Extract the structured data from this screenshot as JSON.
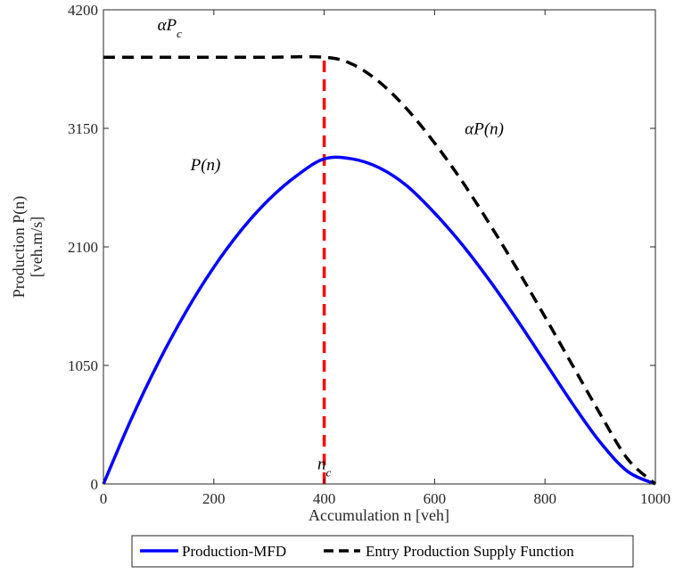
{
  "chart_data": {
    "type": "line",
    "title": "",
    "xlabel": "Accumulation n [veh]",
    "ylabel_line1": "Production P(n)",
    "ylabel_line2": "[veh.m/s]",
    "xlim": [
      0,
      1000
    ],
    "ylim": [
      0,
      4200
    ],
    "xticks": [
      0,
      200,
      400,
      600,
      800,
      1000
    ],
    "yticks": [
      0,
      1050,
      2100,
      3150,
      4200
    ],
    "grid": false,
    "legend_position": "bottom-outside",
    "series": [
      {
        "name": "Production-MFD",
        "color": "#0000ff",
        "style": "solid",
        "x": [
          0,
          50,
          100,
          150,
          200,
          250,
          300,
          350,
          400,
          450,
          500,
          550,
          600,
          650,
          700,
          750,
          800,
          850,
          900,
          950,
          1000
        ],
        "y": [
          0,
          570,
          1080,
          1530,
          1920,
          2250,
          2520,
          2730,
          2880,
          2880,
          2800,
          2640,
          2400,
          2120,
          1800,
          1450,
          1080,
          710,
          370,
          110,
          0
        ]
      },
      {
        "name": "Entry Production Supply Function",
        "color": "#000000",
        "style": "dashed",
        "x": [
          0,
          100,
          200,
          300,
          400,
          450,
          500,
          550,
          600,
          650,
          700,
          750,
          800,
          850,
          900,
          950,
          1000
        ],
        "y": [
          3780,
          3780,
          3780,
          3780,
          3780,
          3720,
          3560,
          3320,
          3020,
          2680,
          2300,
          1900,
          1480,
          1050,
          620,
          220,
          0
        ]
      }
    ],
    "vertical_line": {
      "x": 400,
      "color": "#ff0000",
      "style": "dashed"
    },
    "annotations": [
      {
        "text": "αP",
        "sub": "c",
        "x": 120,
        "y": 4020
      },
      {
        "text": "αP(n)",
        "x": 690,
        "y": 3100
      },
      {
        "text": "P(n)",
        "x": 185,
        "y": 2780
      },
      {
        "text": "n",
        "sub": "c",
        "x": 400,
        "y": 130
      }
    ]
  }
}
